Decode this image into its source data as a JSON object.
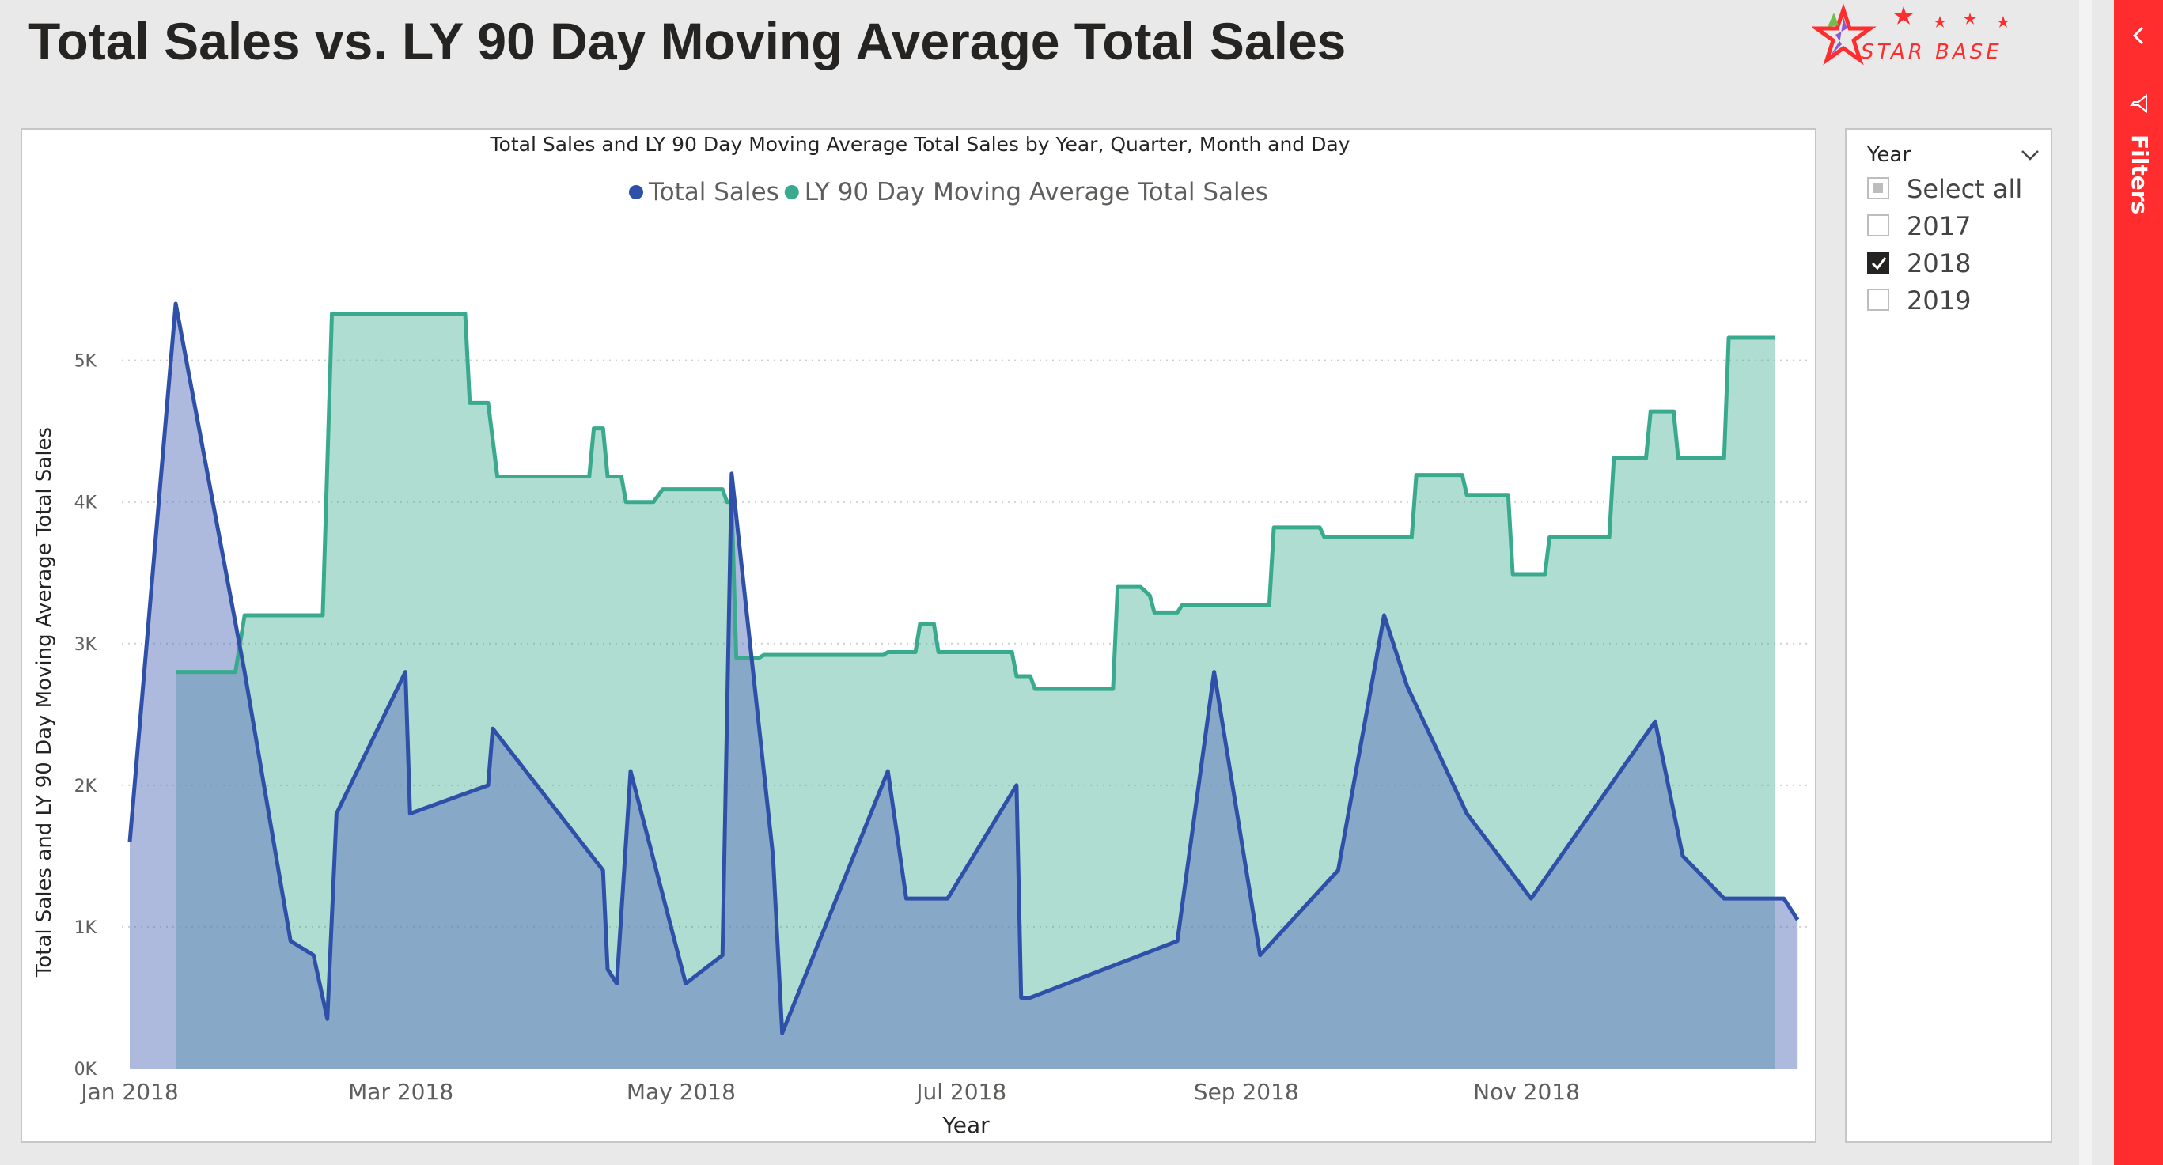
{
  "report": {
    "title": "Total Sales vs. LY 90 Day Moving Average Total Sales",
    "logo_text": "STAR BASE"
  },
  "filters_pane": {
    "label": "Filters"
  },
  "slicer": {
    "title": "Year",
    "items": [
      {
        "label": "Select all",
        "state": "partial"
      },
      {
        "label": "2017",
        "state": "unchecked"
      },
      {
        "label": "2018",
        "state": "checked"
      },
      {
        "label": "2019",
        "state": "unchecked"
      }
    ]
  },
  "colors": {
    "total_sales": "#2F50A8",
    "ly_moving_avg": "#3AAA8F",
    "accent_red": "#FF2D2D"
  },
  "chart_data": {
    "type": "area",
    "title": "Total Sales and LY 90 Day Moving Average Total Sales by Year, Quarter, Month and Day",
    "xlabel": "Year",
    "ylabel": "Total Sales and LY 90 Day Moving Average Total Sales",
    "x_range": [
      "2018-01-01",
      "2018-12-31"
    ],
    "x_ticks": [
      {
        "date": "2018-01-01",
        "label": "Jan 2018"
      },
      {
        "date": "2018-03-01",
        "label": "Mar 2018"
      },
      {
        "date": "2018-05-01",
        "label": "May 2018"
      },
      {
        "date": "2018-07-01",
        "label": "Jul 2018"
      },
      {
        "date": "2018-09-01",
        "label": "Sep 2018"
      },
      {
        "date": "2018-11-01",
        "label": "Nov 2018"
      }
    ],
    "ylim": [
      0,
      5400
    ],
    "y_ticks": [
      {
        "value": 0,
        "label": "0K"
      },
      {
        "value": 1000,
        "label": "1K"
      },
      {
        "value": 2000,
        "label": "2K"
      },
      {
        "value": 3000,
        "label": "3K"
      },
      {
        "value": 4000,
        "label": "4K"
      },
      {
        "value": 5000,
        "label": "5K"
      }
    ],
    "grid": true,
    "legend_position": "top-center",
    "series": [
      {
        "name": "Total Sales",
        "color": "#2F50A8",
        "points": [
          [
            "2018-01-01",
            1600
          ],
          [
            "2018-01-11",
            5400
          ],
          [
            "2018-01-26",
            2800
          ],
          [
            "2018-02-05",
            900
          ],
          [
            "2018-02-10",
            800
          ],
          [
            "2018-02-13",
            350
          ],
          [
            "2018-02-15",
            1800
          ],
          [
            "2018-03-02",
            2800
          ],
          [
            "2018-03-03",
            1800
          ],
          [
            "2018-03-20",
            2000
          ],
          [
            "2018-03-21",
            2400
          ],
          [
            "2018-04-14",
            1400
          ],
          [
            "2018-04-15",
            700
          ],
          [
            "2018-04-17",
            600
          ],
          [
            "2018-04-20",
            2100
          ],
          [
            "2018-05-02",
            600
          ],
          [
            "2018-05-10",
            800
          ],
          [
            "2018-05-12",
            4200
          ],
          [
            "2018-05-21",
            1500
          ],
          [
            "2018-05-23",
            250
          ],
          [
            "2018-06-15",
            2100
          ],
          [
            "2018-06-19",
            1200
          ],
          [
            "2018-06-28",
            1200
          ],
          [
            "2018-07-13",
            2000
          ],
          [
            "2018-07-14",
            500
          ],
          [
            "2018-07-16",
            500
          ],
          [
            "2018-08-17",
            900
          ],
          [
            "2018-08-25",
            2800
          ],
          [
            "2018-09-04",
            800
          ],
          [
            "2018-09-21",
            1400
          ],
          [
            "2018-10-01",
            3200
          ],
          [
            "2018-10-06",
            2700
          ],
          [
            "2018-10-19",
            1800
          ],
          [
            "2018-11-02",
            1200
          ],
          [
            "2018-11-29",
            2450
          ],
          [
            "2018-12-05",
            1500
          ],
          [
            "2018-12-14",
            1200
          ],
          [
            "2018-12-27",
            1200
          ],
          [
            "2018-12-30",
            1050
          ]
        ]
      },
      {
        "name": "LY 90 Day Moving Average Total Sales",
        "color": "#3AAA8F",
        "points": [
          [
            "2018-01-11",
            2800
          ],
          [
            "2018-01-24",
            2800
          ],
          [
            "2018-01-26",
            3200
          ],
          [
            "2018-02-12",
            3200
          ],
          [
            "2018-02-14",
            5330
          ],
          [
            "2018-03-15",
            5330
          ],
          [
            "2018-03-16",
            4700
          ],
          [
            "2018-03-20",
            4700
          ],
          [
            "2018-03-22",
            4180
          ],
          [
            "2018-04-11",
            4180
          ],
          [
            "2018-04-12",
            4520
          ],
          [
            "2018-04-14",
            4520
          ],
          [
            "2018-04-15",
            4180
          ],
          [
            "2018-04-18",
            4180
          ],
          [
            "2018-04-19",
            4000
          ],
          [
            "2018-04-25",
            4000
          ],
          [
            "2018-04-27",
            4090
          ],
          [
            "2018-05-10",
            4090
          ],
          [
            "2018-05-11",
            4000
          ],
          [
            "2018-05-12",
            4000
          ],
          [
            "2018-05-13",
            2900
          ],
          [
            "2018-05-18",
            2900
          ],
          [
            "2018-05-19",
            2920
          ],
          [
            "2018-06-14",
            2920
          ],
          [
            "2018-06-15",
            2940
          ],
          [
            "2018-06-21",
            2940
          ],
          [
            "2018-06-22",
            3140
          ],
          [
            "2018-06-25",
            3140
          ],
          [
            "2018-06-26",
            2940
          ],
          [
            "2018-07-12",
            2940
          ],
          [
            "2018-07-13",
            2770
          ],
          [
            "2018-07-16",
            2770
          ],
          [
            "2018-07-17",
            2680
          ],
          [
            "2018-08-03",
            2680
          ],
          [
            "2018-08-04",
            3400
          ],
          [
            "2018-08-09",
            3400
          ],
          [
            "2018-08-11",
            3340
          ],
          [
            "2018-08-12",
            3220
          ],
          [
            "2018-08-17",
            3220
          ],
          [
            "2018-08-18",
            3270
          ],
          [
            "2018-09-06",
            3270
          ],
          [
            "2018-09-07",
            3820
          ],
          [
            "2018-09-17",
            3820
          ],
          [
            "2018-09-18",
            3750
          ],
          [
            "2018-10-07",
            3750
          ],
          [
            "2018-10-08",
            4190
          ],
          [
            "2018-10-18",
            4190
          ],
          [
            "2018-10-19",
            4050
          ],
          [
            "2018-10-28",
            4050
          ],
          [
            "2018-10-29",
            3490
          ],
          [
            "2018-11-05",
            3490
          ],
          [
            "2018-11-06",
            3750
          ],
          [
            "2018-11-19",
            3750
          ],
          [
            "2018-11-20",
            4310
          ],
          [
            "2018-11-27",
            4310
          ],
          [
            "2018-11-28",
            4640
          ],
          [
            "2018-12-03",
            4640
          ],
          [
            "2018-12-04",
            4310
          ],
          [
            "2018-12-14",
            4310
          ],
          [
            "2018-12-15",
            5160
          ],
          [
            "2018-12-25",
            5160
          ]
        ]
      }
    ]
  }
}
